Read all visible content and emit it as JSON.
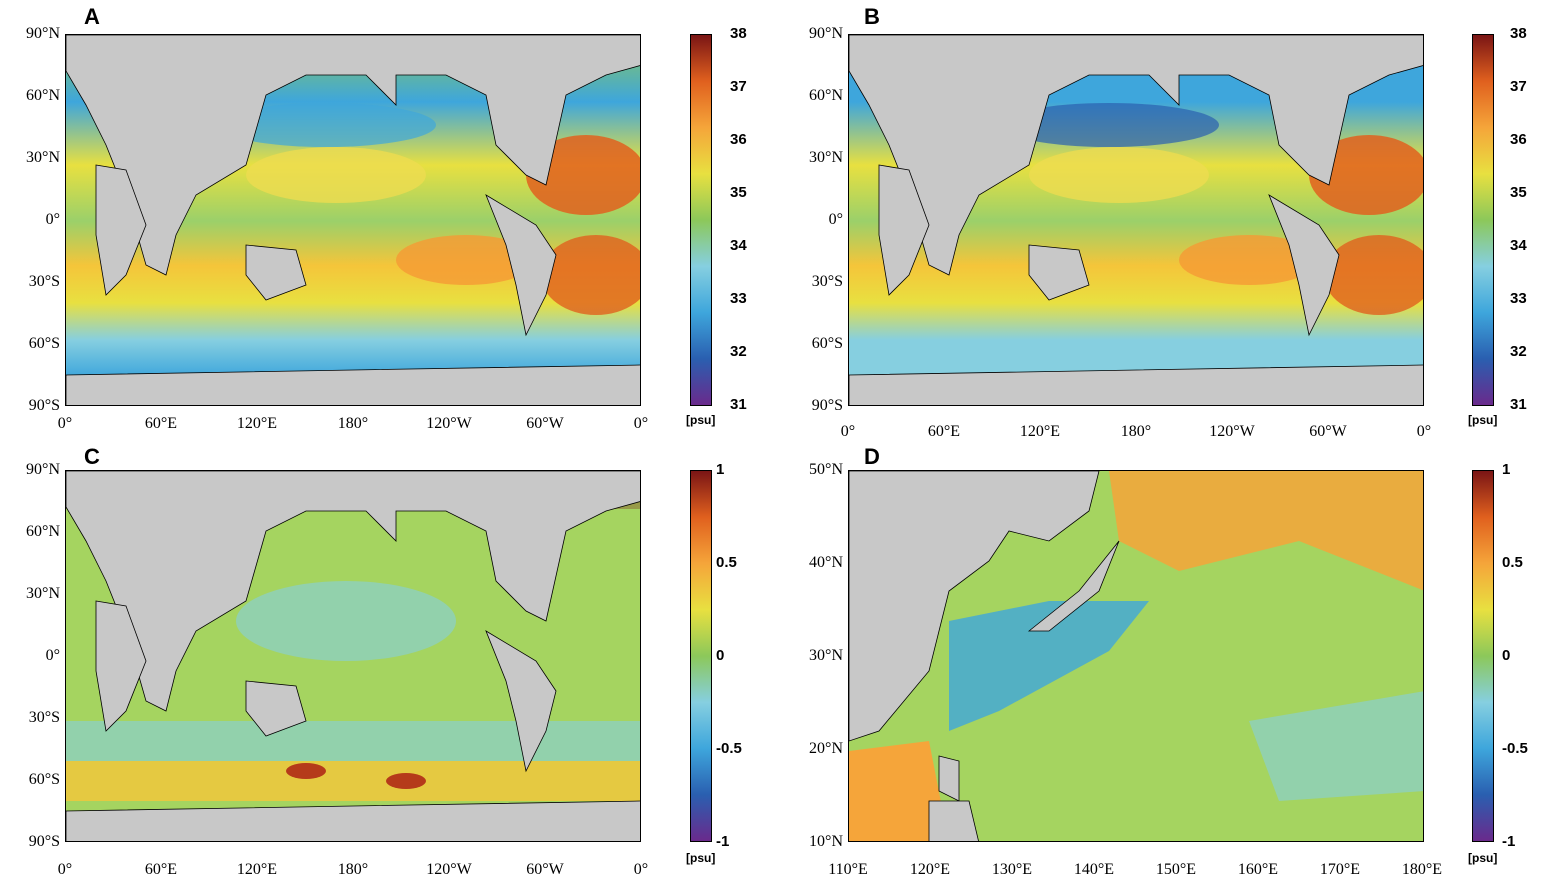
{
  "panels": [
    {
      "letter": "A",
      "yticks": [
        "90°N",
        "60°N",
        "30°N",
        "0°",
        "30°S",
        "60°S",
        "90°S"
      ],
      "xticks": [
        "0°",
        "60°E",
        "120°E",
        "180°",
        "120°W",
        "60°W",
        "0°"
      ],
      "colorbar": {
        "ticks": [
          "38",
          "37",
          "36",
          "35",
          "34",
          "33",
          "32",
          "31"
        ],
        "unit": "[psu]",
        "min": 31,
        "max": 38
      }
    },
    {
      "letter": "B",
      "yticks": [
        "90°N",
        "60°N",
        "30°N",
        "0°",
        "30°S",
        "60°S",
        "90°S"
      ],
      "xticks": [
        "0°",
        "60°E",
        "120°E",
        "180°",
        "120°W",
        "60°W",
        "0°"
      ],
      "colorbar": {
        "ticks": [
          "38",
          "37",
          "36",
          "35",
          "34",
          "33",
          "32",
          "31"
        ],
        "unit": "[psu]",
        "min": 31,
        "max": 38
      }
    },
    {
      "letter": "C",
      "yticks": [
        "90°N",
        "60°N",
        "30°N",
        "0°",
        "30°S",
        "60°S",
        "90°S"
      ],
      "xticks": [
        "0°",
        "60°E",
        "120°E",
        "180°",
        "120°W",
        "60°W",
        "0°"
      ],
      "colorbar": {
        "ticks": [
          "1",
          "0.5",
          "0",
          "-0.5",
          "-1"
        ],
        "unit": "[psu]",
        "min": -1,
        "max": 1
      }
    },
    {
      "letter": "D",
      "yticks": [
        "50°N",
        "40°N",
        "30°N",
        "20°N",
        "10°N"
      ],
      "xticks": [
        "110°E",
        "120°E",
        "130°E",
        "140°E",
        "150°E",
        "160°E",
        "170°E",
        "180°E"
      ],
      "colorbar": {
        "ticks": [
          "1",
          "0.5",
          "0",
          "-0.5",
          "-1"
        ],
        "unit": "[psu]",
        "min": -1,
        "max": 1
      }
    }
  ],
  "colors": {
    "land": "#c8c8c8",
    "colormap": [
      "#6a2a8c",
      "#2a5fb0",
      "#3ea6dc",
      "#86cfe0",
      "#8cc85a",
      "#e8e040",
      "#f5a53a",
      "#e0601e",
      "#7a1515"
    ]
  }
}
